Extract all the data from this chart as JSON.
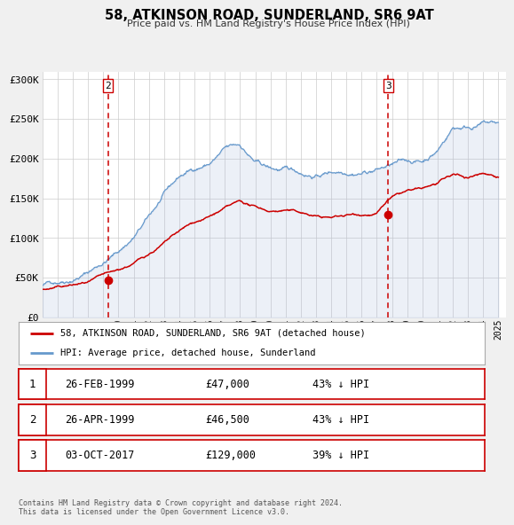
{
  "title": "58, ATKINSON ROAD, SUNDERLAND, SR6 9AT",
  "subtitle": "Price paid vs. HM Land Registry's House Price Index (HPI)",
  "xlim": [
    1995.0,
    2025.5
  ],
  "ylim": [
    0,
    310000
  ],
  "yticks": [
    0,
    50000,
    100000,
    150000,
    200000,
    250000,
    300000
  ],
  "ytick_labels": [
    "£0",
    "£50K",
    "£100K",
    "£150K",
    "£200K",
    "£250K",
    "£300K"
  ],
  "xtick_years": [
    1995,
    1996,
    1997,
    1998,
    1999,
    2000,
    2001,
    2002,
    2003,
    2004,
    2005,
    2006,
    2007,
    2008,
    2009,
    2010,
    2011,
    2012,
    2013,
    2014,
    2015,
    2016,
    2017,
    2018,
    2019,
    2020,
    2021,
    2022,
    2023,
    2024,
    2025
  ],
  "red_color": "#cc0000",
  "blue_color": "#6699cc",
  "blue_fill_color": "#aabbdd",
  "bg_color": "#f0f0f0",
  "plot_bg": "#ffffff",
  "transaction2_x": 1999.32,
  "transaction2_y": 46500,
  "transaction3_x": 2017.75,
  "transaction3_y": 129000,
  "legend_label_red": "58, ATKINSON ROAD, SUNDERLAND, SR6 9AT (detached house)",
  "legend_label_blue": "HPI: Average price, detached house, Sunderland",
  "table_rows": [
    {
      "num": "1",
      "date": "26-FEB-1999",
      "price": "£47,000",
      "hpi": "43% ↓ HPI"
    },
    {
      "num": "2",
      "date": "26-APR-1999",
      "price": "£46,500",
      "hpi": "43% ↓ HPI"
    },
    {
      "num": "3",
      "date": "03-OCT-2017",
      "price": "£129,000",
      "hpi": "39% ↓ HPI"
    }
  ],
  "footer": "Contains HM Land Registry data © Crown copyright and database right 2024.\nThis data is licensed under the Open Government Licence v3.0."
}
